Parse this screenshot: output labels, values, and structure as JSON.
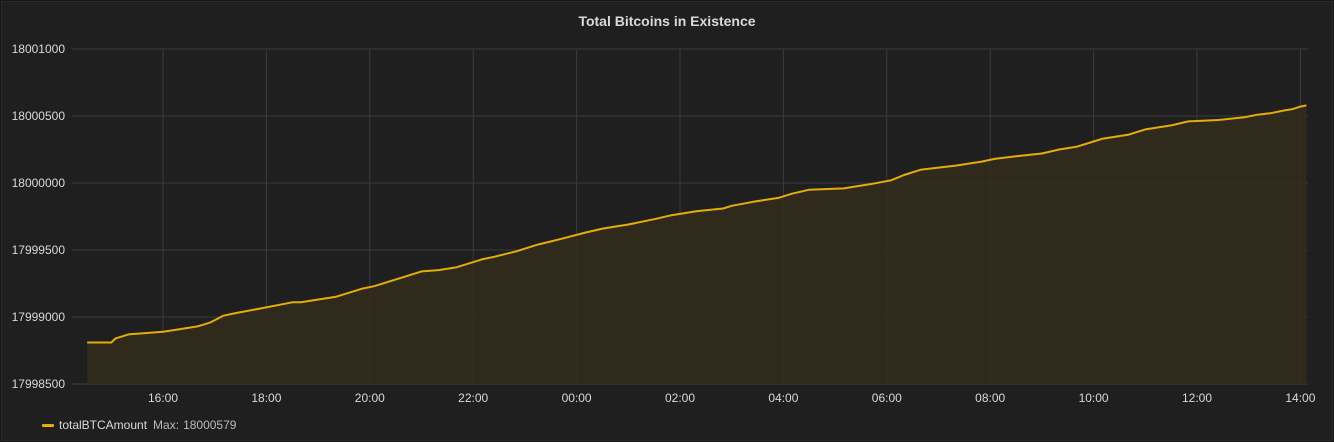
{
  "panel": {
    "title": "Total Bitcoins in Existence"
  },
  "colors": {
    "background": "#1f1f1f",
    "grid": "#3b3b3b",
    "axis_text": "#d8d9da",
    "series": "#e5ac0e",
    "fill": "#332d1c"
  },
  "legend": {
    "series_name": "totalBTCAmount",
    "stat_label": "Max:",
    "stat_value": "18000579"
  },
  "chart_data": {
    "type": "area",
    "title": "Total Bitcoins in Existence",
    "xlabel": "",
    "ylabel": "",
    "grid": true,
    "legend_position": "bottom-left",
    "ylim": [
      17998500,
      18001000
    ],
    "xlim": [
      "14:32",
      "14:07"
    ],
    "y_ticks": [
      "17998500",
      "17999000",
      "17999500",
      "18000000",
      "18000500",
      "18001000"
    ],
    "x_ticks": [
      "16:00",
      "18:00",
      "20:00",
      "22:00",
      "00:00",
      "02:00",
      "04:00",
      "06:00",
      "08:00",
      "10:00",
      "12:00",
      "14:00"
    ],
    "series": [
      {
        "name": "totalBTCAmount",
        "x": [
          "14:32",
          "15:00",
          "15:05",
          "15:20",
          "16:00",
          "16:20",
          "16:40",
          "16:55",
          "17:10",
          "17:25",
          "17:50",
          "18:30",
          "18:40",
          "19:20",
          "19:35",
          "19:50",
          "20:05",
          "20:20",
          "20:40",
          "21:00",
          "21:20",
          "21:40",
          "22:10",
          "22:25",
          "22:50",
          "23:15",
          "23:40",
          "00:10",
          "00:30",
          "01:00",
          "01:30",
          "01:50",
          "02:20",
          "02:50",
          "03:00",
          "03:25",
          "03:55",
          "04:10",
          "04:30",
          "05:10",
          "05:40",
          "06:05",
          "06:20",
          "06:40",
          "07:20",
          "07:50",
          "08:05",
          "08:30",
          "09:00",
          "09:20",
          "09:40",
          "10:00",
          "10:10",
          "10:40",
          "11:00",
          "11:30",
          "11:50",
          "12:25",
          "12:55",
          "13:10",
          "13:25",
          "13:40",
          "13:50",
          "14:00",
          "14:07"
        ],
        "values": [
          17998810,
          17998810,
          17998840,
          17998870,
          17998890,
          17998910,
          17998930,
          17998960,
          17999010,
          17999030,
          17999060,
          17999110,
          17999110,
          17999150,
          17999180,
          17999210,
          17999230,
          17999260,
          17999300,
          17999340,
          17999350,
          17999370,
          17999430,
          17999450,
          17999490,
          17999540,
          17999580,
          17999630,
          17999660,
          17999690,
          17999730,
          17999760,
          17999790,
          17999810,
          17999830,
          17999860,
          17999890,
          17999920,
          17999950,
          17999960,
          17999990,
          18000020,
          18000060,
          18000100,
          18000130,
          18000160,
          18000180,
          18000200,
          18000220,
          18000250,
          18000270,
          18000310,
          18000330,
          18000360,
          18000400,
          18000430,
          18000460,
          18000470,
          18000490,
          18000510,
          18000520,
          18000540,
          18000550,
          18000570,
          18000579
        ]
      }
    ]
  }
}
